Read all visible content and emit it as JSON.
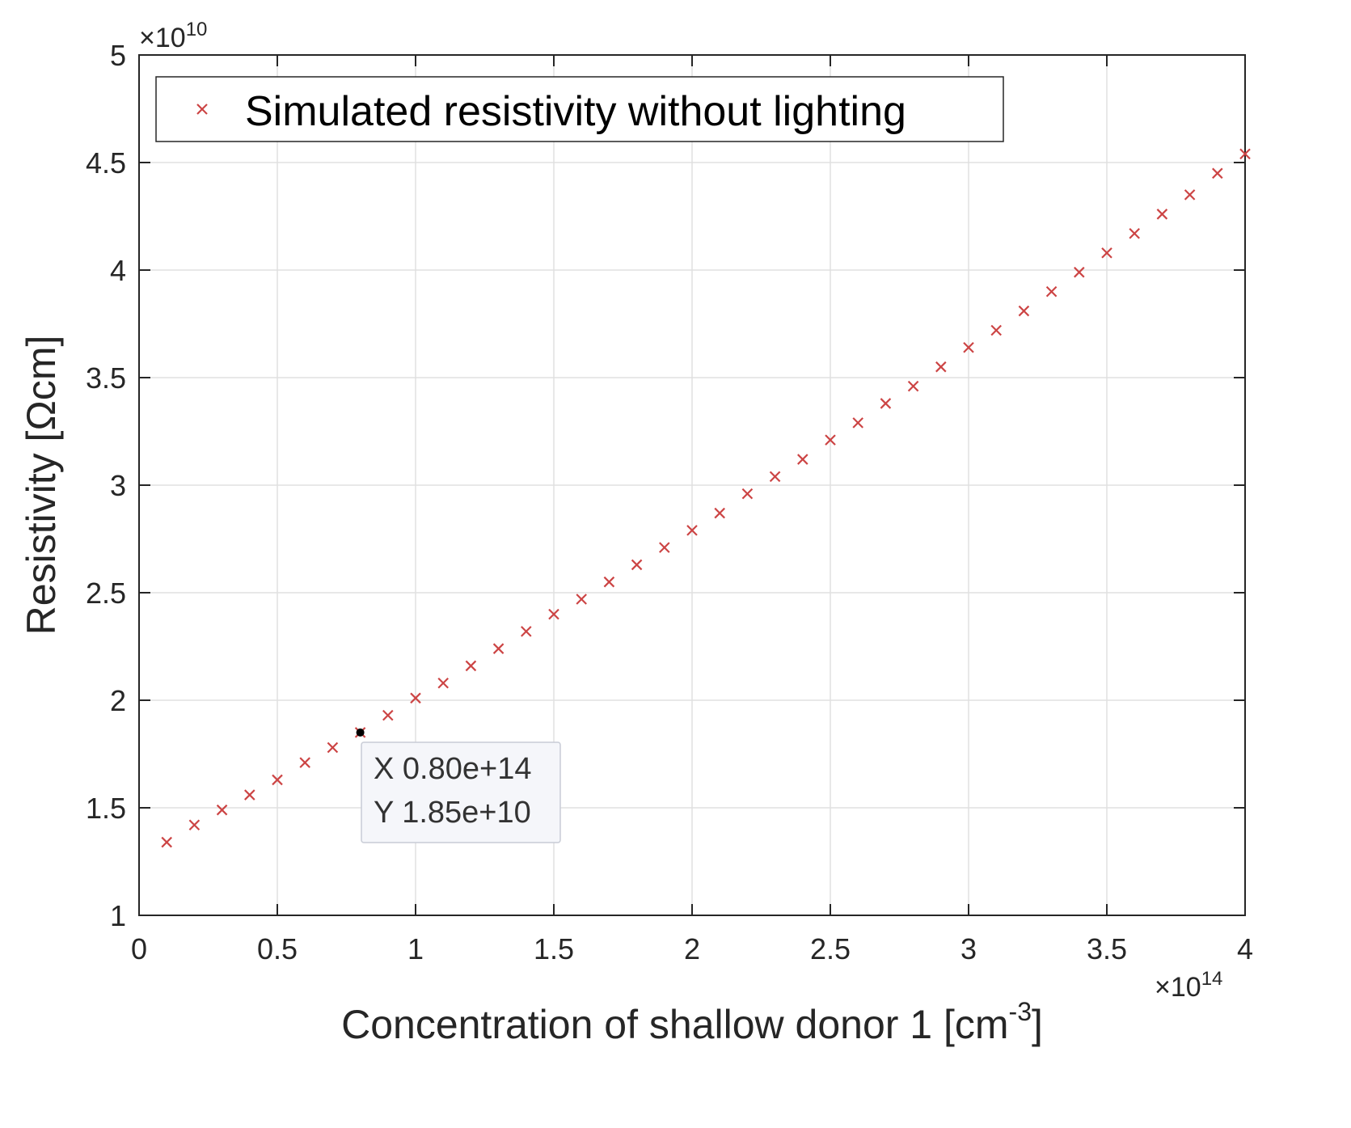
{
  "chart_data": {
    "type": "scatter",
    "title": "",
    "xlabel": "Concentration of shallow donor 1 [cm",
    "xlabel_superscript": "-3",
    "xlabel_suffix": "]",
    "ylabel": "Resistivity [Ωcm]",
    "x_exponent_prefix": "×10",
    "x_exponent": "14",
    "y_exponent_prefix": "×10",
    "y_exponent": "10",
    "xlim": [
      0,
      4
    ],
    "ylim": [
      1,
      5
    ],
    "x_ticks": [
      0,
      0.5,
      1,
      1.5,
      2,
      2.5,
      3,
      3.5,
      4
    ],
    "x_tick_labels": [
      "0",
      "0.5",
      "1",
      "1.5",
      "2",
      "2.5",
      "3",
      "3.5",
      "4"
    ],
    "y_ticks": [
      1,
      1.5,
      2,
      2.5,
      3,
      3.5,
      4,
      4.5,
      5
    ],
    "y_tick_labels": [
      "1",
      "1.5",
      "2",
      "2.5",
      "3",
      "3.5",
      "4",
      "4.5",
      "5"
    ],
    "grid": true,
    "legend_position": "top-left",
    "series": [
      {
        "name": "Simulated resistivity without lighting",
        "marker": "x",
        "color": "#cc4444",
        "x": [
          0.1,
          0.2,
          0.3,
          0.4,
          0.5,
          0.6,
          0.7,
          0.8,
          0.9,
          1.0,
          1.1,
          1.2,
          1.3,
          1.4,
          1.5,
          1.6,
          1.7,
          1.8,
          1.9,
          2.0,
          2.1,
          2.2,
          2.3,
          2.4,
          2.5,
          2.6,
          2.7,
          2.8,
          2.9,
          3.0,
          3.1,
          3.2,
          3.3,
          3.4,
          3.5,
          3.6,
          3.7,
          3.8,
          3.9,
          4.0
        ],
        "y": [
          1.34,
          1.42,
          1.49,
          1.56,
          1.63,
          1.71,
          1.78,
          1.85,
          1.93,
          2.01,
          2.08,
          2.16,
          2.24,
          2.32,
          2.4,
          2.47,
          2.55,
          2.63,
          2.71,
          2.79,
          2.87,
          2.96,
          3.04,
          3.12,
          3.21,
          3.29,
          3.38,
          3.46,
          3.55,
          3.64,
          3.72,
          3.81,
          3.9,
          3.99,
          4.08,
          4.17,
          4.26,
          4.35,
          4.45,
          4.54
        ]
      }
    ],
    "datatip": {
      "x": 0.8,
      "y": 1.85,
      "x_label": "X 0.80e+14",
      "y_label": "Y 1.85e+10"
    }
  },
  "colors": {
    "marker": "#cc4444",
    "axis": "#262626",
    "grid": "#e0e0e0",
    "datatip_bg": "#f5f6fa",
    "datatip_border": "#c8ccd6"
  }
}
